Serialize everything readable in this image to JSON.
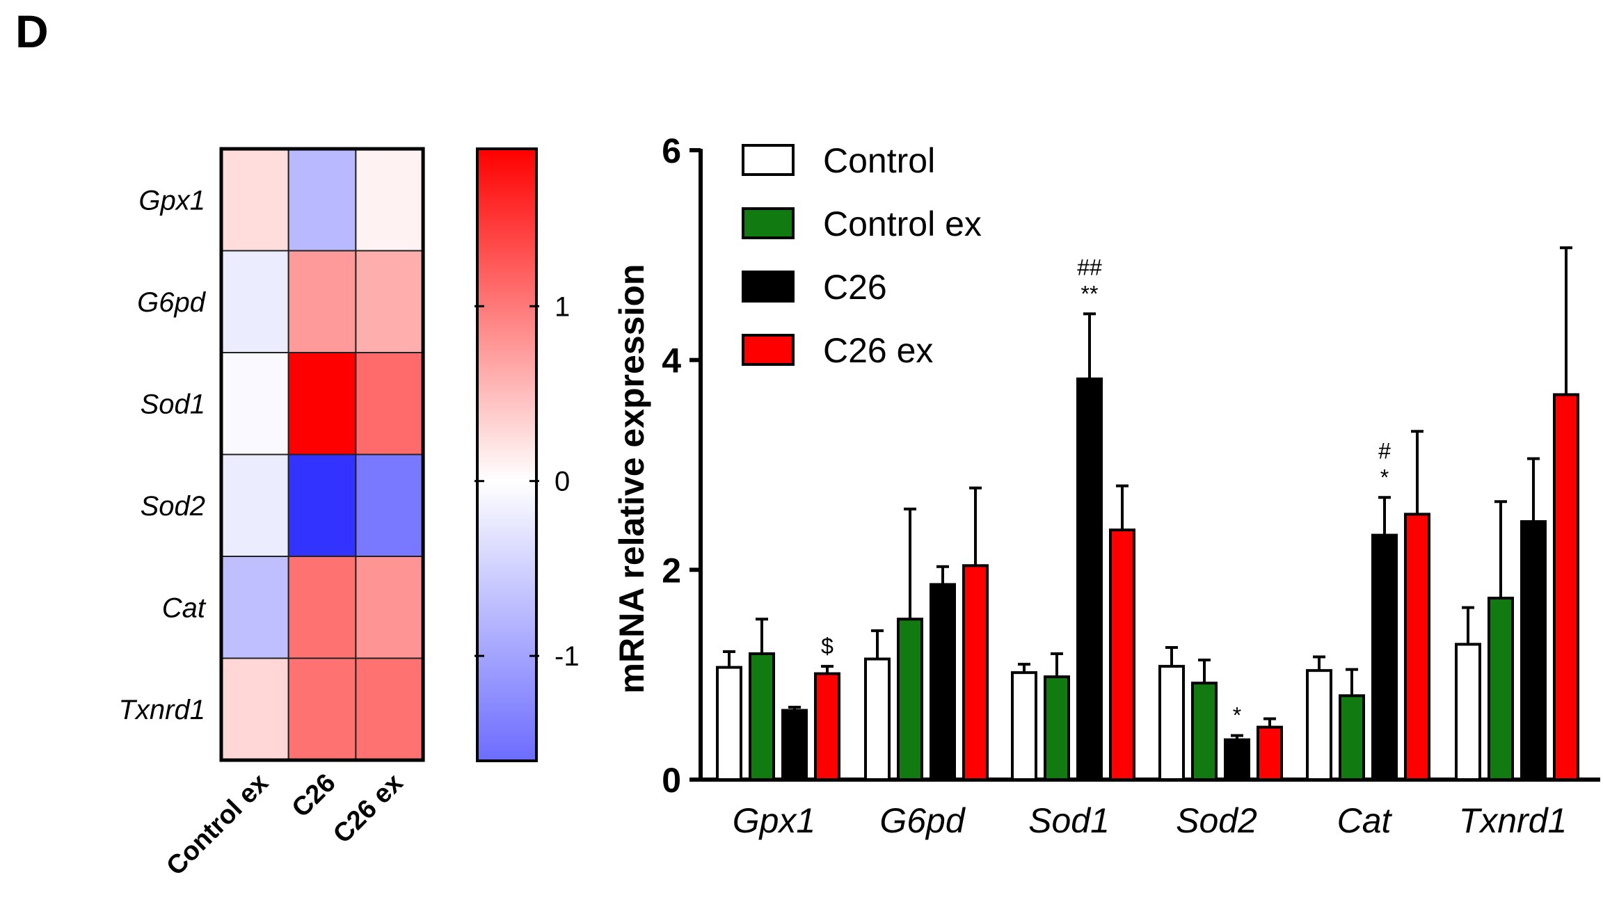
{
  "panel_label": "D",
  "heatmap": {
    "rows": [
      "Gpx1",
      "G6pd",
      "Sod1",
      "Sod2",
      "Cat",
      "Txnrd1"
    ],
    "columns": [
      "Control ex",
      "C26",
      "C26 ex"
    ],
    "values": [
      [
        0.25,
        -0.55,
        0.1
      ],
      [
        -0.15,
        0.75,
        0.6
      ],
      [
        -0.05,
        1.9,
        1.1
      ],
      [
        -0.15,
        -1.6,
        -1.05
      ],
      [
        -0.5,
        1.05,
        0.8
      ],
      [
        0.3,
        1.05,
        1.05
      ]
    ],
    "colorbar": {
      "min": -1.6,
      "max": 1.9,
      "ticks": [
        {
          "value": 1,
          "label": "1"
        },
        {
          "value": 0,
          "label": "0"
        },
        {
          "value": -1,
          "label": "-1"
        }
      ],
      "colors": {
        "low": "#3333ff",
        "mid": "#ffffff",
        "high": "#ff0000"
      }
    }
  },
  "chart_data": {
    "type": "bar",
    "title": "",
    "xlabel": "",
    "ylabel": "mRNA relative expression",
    "ylim": [
      0,
      6
    ],
    "yticks": [
      {
        "value": 0,
        "label": "0"
      },
      {
        "value": 2,
        "label": "2"
      },
      {
        "value": 4,
        "label": "4"
      },
      {
        "value": 6,
        "label": "6"
      }
    ],
    "categories": [
      "Gpx1",
      "G6pd",
      "Sod1",
      "Sod2",
      "Cat",
      "Txnrd1"
    ],
    "legend_position": "top-left",
    "series": [
      {
        "name": "Control",
        "color": "#ffffff",
        "values": [
          1.07,
          1.15,
          1.02,
          1.08,
          1.04,
          1.29
        ],
        "errors": [
          0.15,
          0.27,
          0.08,
          0.18,
          0.13,
          0.35
        ]
      },
      {
        "name": "Control ex",
        "color": "#117a11",
        "values": [
          1.2,
          1.53,
          0.98,
          0.92,
          0.8,
          1.73
        ],
        "errors": [
          0.33,
          1.05,
          0.22,
          0.22,
          0.25,
          0.92
        ]
      },
      {
        "name": "C26",
        "color": "#000000",
        "values": [
          0.66,
          1.86,
          3.82,
          0.38,
          2.33,
          2.46
        ],
        "errors": [
          0.03,
          0.17,
          0.62,
          0.04,
          0.36,
          0.6
        ]
      },
      {
        "name": "C26 ex",
        "color": "#ff0000",
        "values": [
          1.01,
          2.04,
          2.38,
          0.5,
          2.53,
          3.67
        ],
        "errors": [
          0.07,
          0.74,
          0.42,
          0.08,
          0.79,
          1.4
        ]
      }
    ],
    "annotations": [
      {
        "category": "Gpx1",
        "series": "C26 ex",
        "lines": [
          "$"
        ]
      },
      {
        "category": "Sod1",
        "series": "C26",
        "lines": [
          "##",
          "**"
        ]
      },
      {
        "category": "Sod2",
        "series": "C26",
        "lines": [
          "*"
        ]
      },
      {
        "category": "Cat",
        "series": "C26",
        "lines": [
          "#",
          "*"
        ]
      }
    ]
  }
}
